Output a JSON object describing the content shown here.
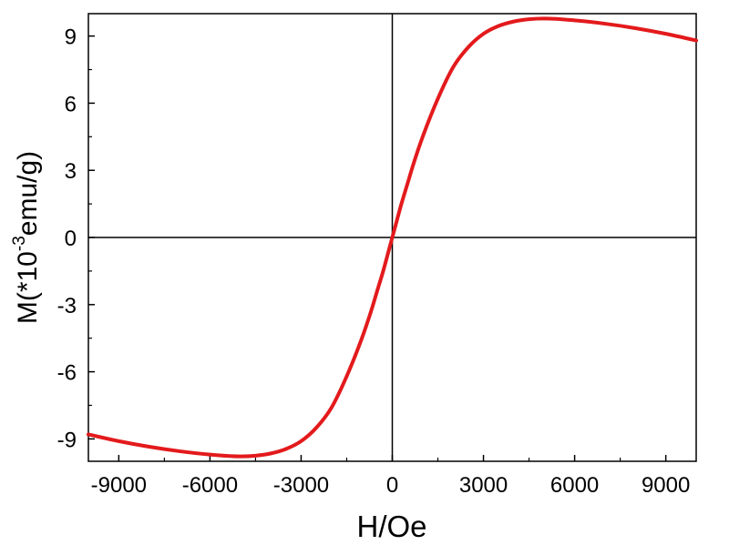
{
  "chart_data": {
    "type": "line",
    "title": "",
    "xlabel": "H/Oe",
    "ylabel": "M(*10",
    "ylabel_exponent": "-3",
    "ylabel_unit": "emu/g)",
    "xlim": [
      -10000,
      10000
    ],
    "ylim": [
      -10,
      10
    ],
    "xticks": [
      -9000,
      -6000,
      -3000,
      0,
      3000,
      6000,
      9000
    ],
    "xtick_labels": [
      "-9000",
      "-6000",
      "-3000",
      "0",
      "3000",
      "6000",
      "9000"
    ],
    "yticks": [
      -9,
      -6,
      -3,
      0,
      3,
      6,
      9
    ],
    "ytick_labels": [
      "-9",
      "-6",
      "-3",
      "0",
      "3",
      "6",
      "9"
    ],
    "grid": false,
    "zero_lines": true,
    "colors": {
      "series": "#e31a1c",
      "axis": "#000000"
    },
    "series": [
      {
        "x": [
          -10000,
          -9000,
          -8000,
          -7000,
          -6000,
          -5000,
          -4500,
          -4000,
          -3500,
          -3000,
          -2500,
          -2000,
          -1500,
          -1000,
          -700,
          -500,
          -300,
          -100,
          0,
          100,
          300,
          500,
          700,
          1000,
          1500,
          2000,
          2500,
          3000,
          3500,
          4000,
          4500,
          5000,
          6000,
          7000,
          8000,
          9000,
          10000
        ],
        "y": [
          -8.8,
          -9.1,
          -9.35,
          -9.55,
          -9.7,
          -9.78,
          -9.75,
          -9.65,
          -9.45,
          -9.1,
          -8.5,
          -7.6,
          -6.2,
          -4.5,
          -3.3,
          -2.4,
          -1.5,
          -0.5,
          0,
          0.5,
          1.5,
          2.4,
          3.3,
          4.5,
          6.2,
          7.6,
          8.5,
          9.1,
          9.45,
          9.65,
          9.75,
          9.78,
          9.7,
          9.55,
          9.35,
          9.1,
          8.8
        ]
      }
    ]
  }
}
